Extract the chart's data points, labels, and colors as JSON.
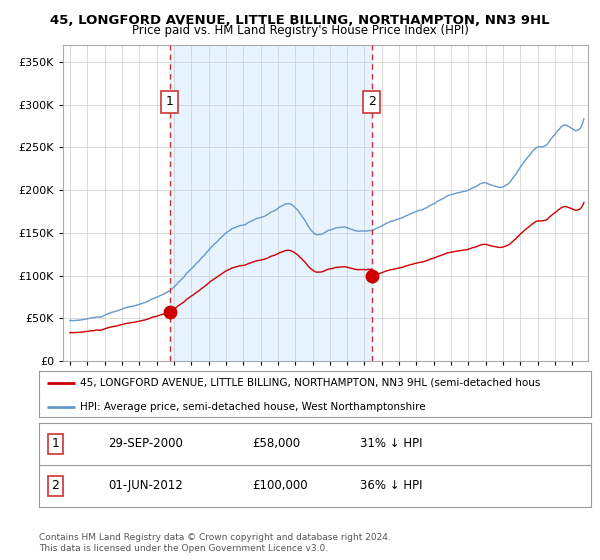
{
  "title": "45, LONGFORD AVENUE, LITTLE BILLING, NORTHAMPTON, NN3 9HL",
  "subtitle": "Price paid vs. HM Land Registry's House Price Index (HPI)",
  "hpi_color": "#6699cc",
  "price_color": "#cc0000",
  "marker_color": "#cc0000",
  "vline_color": "#cc3333",
  "shade_color": "#ddeeff",
  "background_color": "#ffffff",
  "grid_color": "#cccccc",
  "purchase1": {
    "date_num": 2000.75,
    "price": 58000,
    "label": "1"
  },
  "purchase2": {
    "date_num": 2012.42,
    "price": 100000,
    "label": "2"
  },
  "legend_line1": "45, LONGFORD AVENUE, LITTLE BILLING, NORTHAMPTON, NN3 9HL (semi-detached hous",
  "legend_line2": "HPI: Average price, semi-detached house, West Northamptonshire",
  "footnote": "Contains HM Land Registry data © Crown copyright and database right 2024.\nThis data is licensed under the Open Government Licence v3.0.",
  "ylim": [
    0,
    370000
  ],
  "xlim_start": 1994.6,
  "xlim_end": 2024.9
}
